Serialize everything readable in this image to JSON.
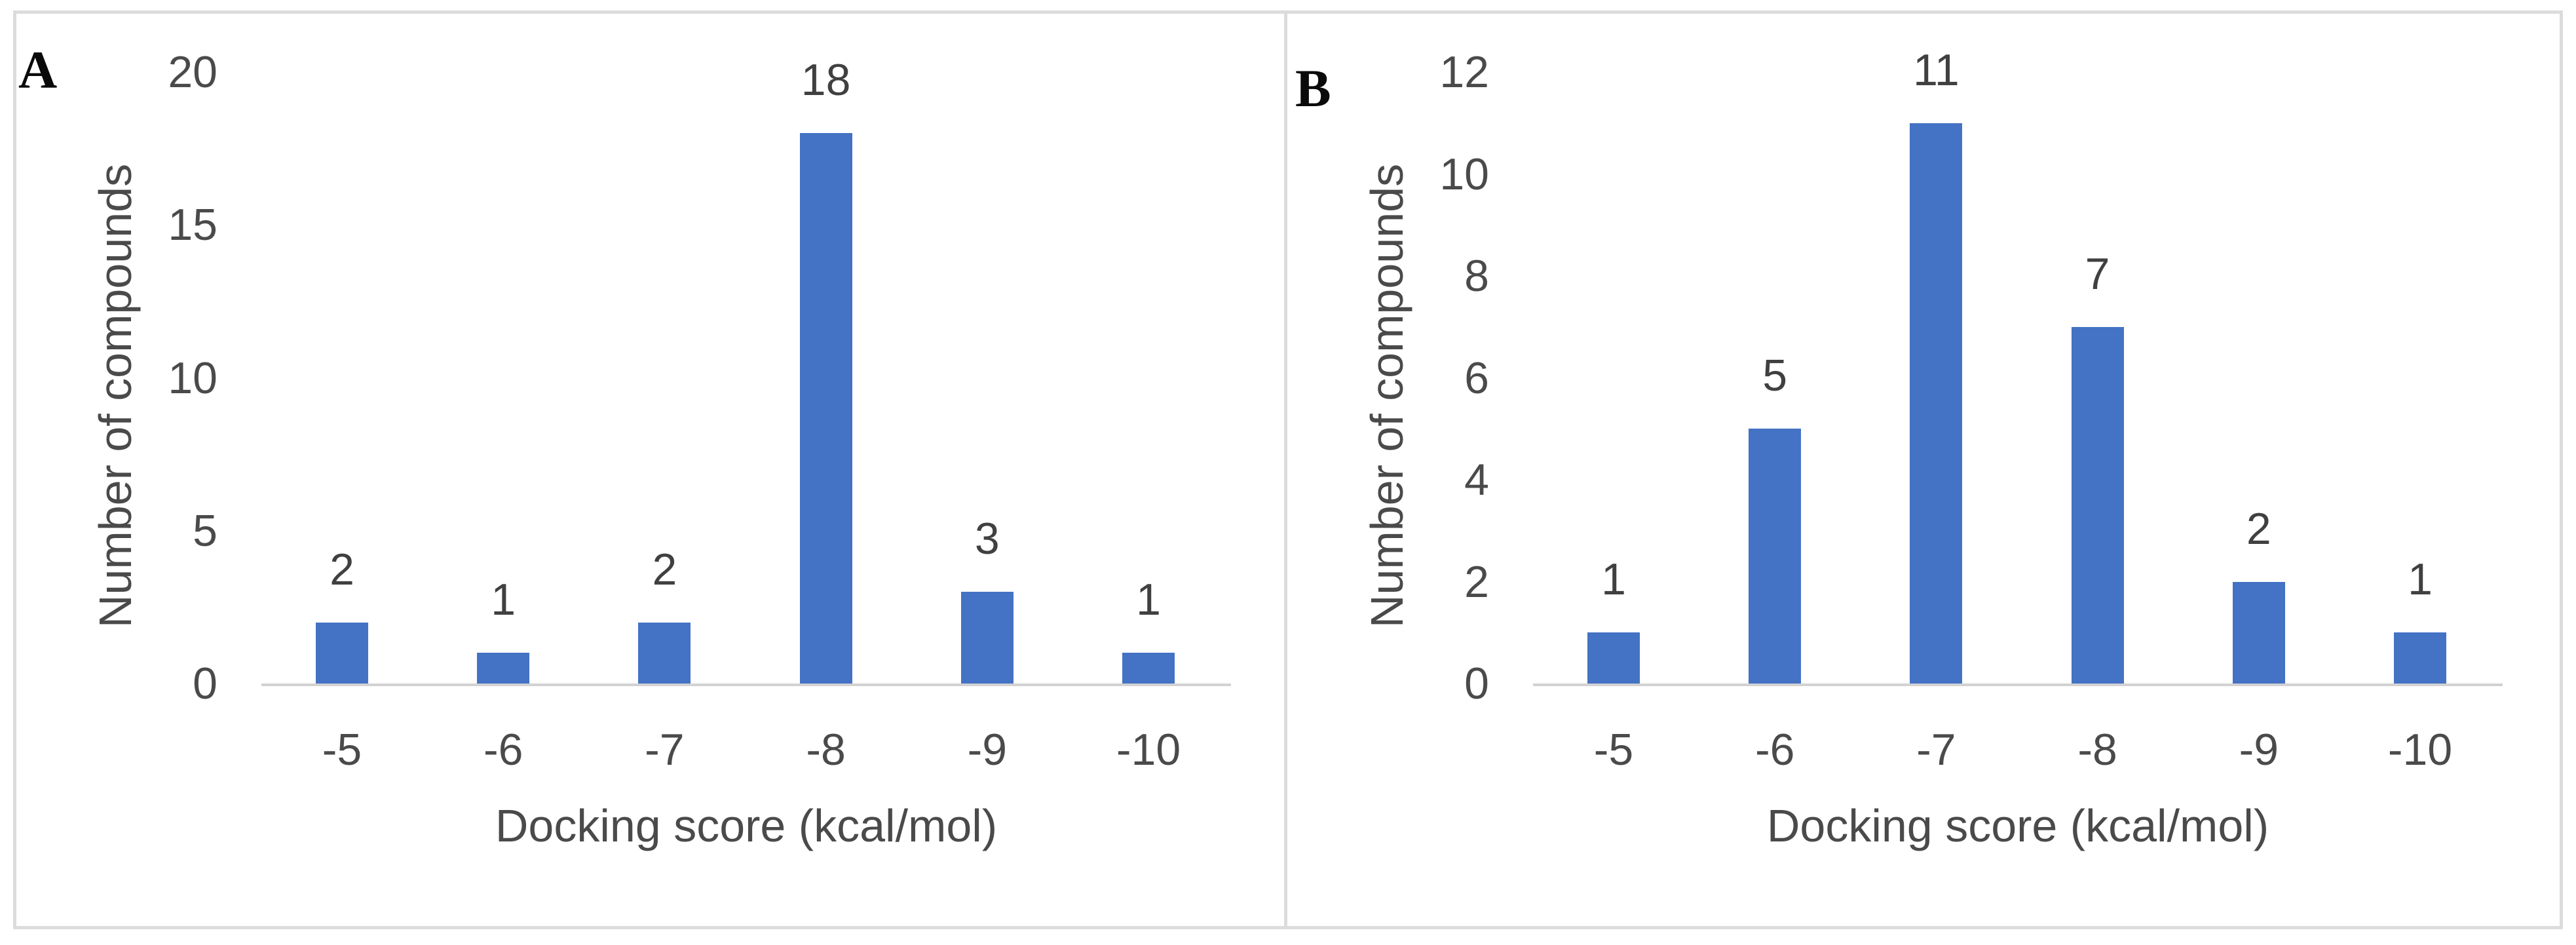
{
  "figure": {
    "background": "#ffffff",
    "frame_border_color": "#dcdcdc"
  },
  "colors": {
    "bar": "#4472c4",
    "text": "#4a4a4a",
    "data_label_text": "#404040",
    "axis_line": "#d2d2d2",
    "panel_letter": "#0a0a0a"
  },
  "chart_data": [
    {
      "type": "bar",
      "panel_label": "A",
      "categories": [
        "-5",
        "-6",
        "-7",
        "-8",
        "-9",
        "-10"
      ],
      "values": [
        2,
        1,
        2,
        18,
        3,
        1
      ],
      "xlabel": "Docking score (kcal/mol)",
      "ylabel": "Number of compounds",
      "ylim": [
        0,
        20
      ],
      "yticks": [
        0,
        5,
        10,
        15,
        20
      ],
      "grid": false,
      "legend": false,
      "data_labels": true
    },
    {
      "type": "bar",
      "panel_label": "B",
      "categories": [
        "-5",
        "-6",
        "-7",
        "-8",
        "-9",
        "-10"
      ],
      "values": [
        1,
        5,
        11,
        7,
        2,
        1
      ],
      "xlabel": "Docking score (kcal/mol)",
      "ylabel": "Number of compounds",
      "ylim": [
        0,
        12
      ],
      "yticks": [
        0,
        2,
        4,
        6,
        8,
        10,
        12
      ],
      "grid": false,
      "legend": false,
      "data_labels": true
    }
  ]
}
